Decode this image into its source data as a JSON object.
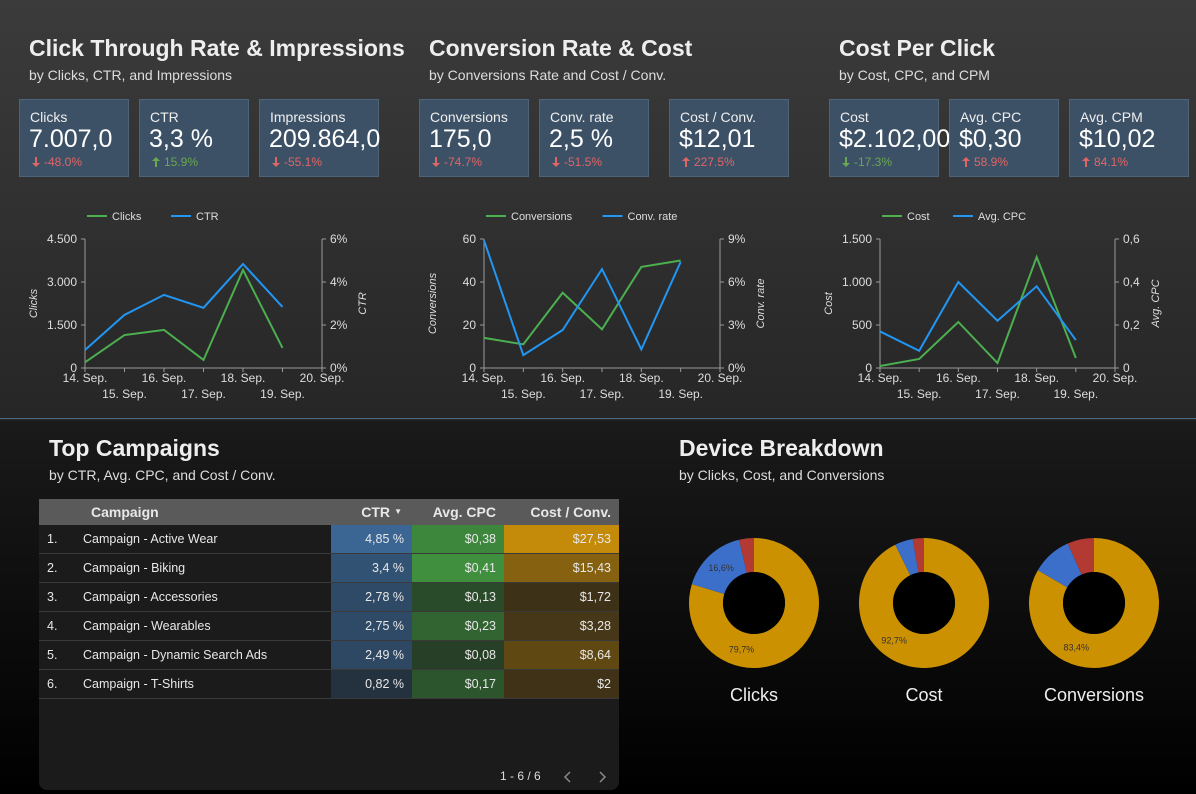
{
  "panels": [
    {
      "title": "Click Through Rate & Impressions",
      "subtitle": "by Clicks, CTR, and Impressions",
      "scorecards": [
        {
          "label": "Clicks",
          "value": "7.007,0",
          "delta": "-48.0%",
          "direction": "down",
          "delta_color": "#e06666"
        },
        {
          "label": "CTR",
          "value": "3,3 %",
          "delta": "15.9%",
          "direction": "up",
          "delta_color": "#6aa84f"
        },
        {
          "label": "Impressions",
          "value": "209.864,0",
          "delta": "-55.1%",
          "direction": "down",
          "delta_color": "#e06666"
        }
      ]
    },
    {
      "title": "Conversion Rate & Cost",
      "subtitle": "by Conversions Rate and Cost / Conv.",
      "scorecards": [
        {
          "label": "Conversions",
          "value": "175,0",
          "delta": "-74.7%",
          "direction": "down",
          "delta_color": "#e06666"
        },
        {
          "label": "Conv. rate",
          "value": "2,5 %",
          "delta": "-51.5%",
          "direction": "down",
          "delta_color": "#e06666"
        },
        {
          "label": "Cost / Conv.",
          "value": "$12,01",
          "delta": "227.5%",
          "direction": "up",
          "delta_color": "#e06666"
        }
      ]
    },
    {
      "title": "Cost Per Click",
      "subtitle": "by Cost, CPC, and CPM",
      "scorecards": [
        {
          "label": "Cost",
          "value": "$2.102,00",
          "delta": "-17.3%",
          "direction": "down",
          "delta_color": "#6aa84f"
        },
        {
          "label": "Avg. CPC",
          "value": "$0,30",
          "delta": "58.9%",
          "direction": "up",
          "delta_color": "#e06666"
        },
        {
          "label": "Avg. CPM",
          "value": "$10,02",
          "delta": "84.1%",
          "direction": "up",
          "delta_color": "#e06666"
        }
      ]
    },
    {
      "title": "Top Campaigns",
      "subtitle": "by CTR, Avg. CPC, and Cost / Conv."
    },
    {
      "title": "Device Breakdown",
      "subtitle": "by Clicks, Cost, and Conversions"
    }
  ],
  "chart_data": [
    {
      "type": "line",
      "categories": [
        "14. Sep.",
        "15. Sep.",
        "16. Sep.",
        "17. Sep.",
        "18. Sep.",
        "19. Sep.",
        "20. Sep."
      ],
      "ylabel": "Clicks",
      "y2label": "CTR",
      "series": [
        {
          "name": "Clicks",
          "color": "#4caf50",
          "values": [
            200,
            1150,
            1330,
            280,
            3420,
            700,
            null
          ]
        },
        {
          "name": "CTR",
          "color": "#2196f3",
          "axis": "y2",
          "values": [
            0.84,
            2.47,
            3.4,
            2.8,
            4.84,
            2.84,
            null
          ]
        }
      ],
      "ylim": [
        0,
        4500
      ],
      "yticks": [
        0,
        {
          "value": 1500,
          "label": "1.500"
        },
        {
          "value": 3000,
          "label": "3.000"
        },
        {
          "value": 4500,
          "label": "4.500"
        }
      ],
      "y2lim": [
        0,
        6
      ],
      "y2ticks": [
        {
          "value": 0,
          "label": "0%"
        },
        {
          "value": 2,
          "label": "2%"
        },
        {
          "value": 4,
          "label": "4%"
        },
        {
          "value": 6,
          "label": "6%"
        }
      ]
    },
    {
      "type": "line",
      "categories": [
        "14. Sep.",
        "15. Sep.",
        "16. Sep.",
        "17. Sep.",
        "18. Sep.",
        "19. Sep.",
        "20. Sep."
      ],
      "ylabel": "Conversions",
      "y2label": "Conv. rate",
      "series": [
        {
          "name": "Conversions",
          "color": "#4caf50",
          "values": [
            14,
            11,
            35,
            18,
            47,
            50,
            null
          ]
        },
        {
          "name": "Conv. rate",
          "color": "#2196f3",
          "axis": "y2",
          "values": [
            8.9,
            0.9,
            2.65,
            6.9,
            1.3,
            7.4,
            null
          ]
        }
      ],
      "ylim": [
        0,
        60
      ],
      "yticks": [
        0,
        20,
        40,
        60
      ],
      "y2lim": [
        0,
        9
      ],
      "y2ticks": [
        {
          "value": 0,
          "label": "0%"
        },
        {
          "value": 3,
          "label": "3%"
        },
        {
          "value": 6,
          "label": "6%"
        },
        {
          "value": 9,
          "label": "9%"
        }
      ]
    },
    {
      "type": "line",
      "categories": [
        "14. Sep.",
        "15. Sep.",
        "16. Sep.",
        "17. Sep.",
        "18. Sep.",
        "19. Sep.",
        "20. Sep."
      ],
      "ylabel": "Cost",
      "y2label": "Avg. CPC",
      "series": [
        {
          "name": "Cost",
          "color": "#4caf50",
          "values": [
            23,
            105,
            535,
            58,
            1290,
            116,
            null
          ]
        },
        {
          "name": "Avg. CPC",
          "color": "#2196f3",
          "axis": "y2",
          "values": [
            0.17,
            0.08,
            0.4,
            0.22,
            0.38,
            0.13,
            null
          ]
        }
      ],
      "ylim": [
        0,
        1500
      ],
      "yticks": [
        0,
        500,
        {
          "value": 1000,
          "label": "1.000"
        },
        {
          "value": 1500,
          "label": "1.500"
        }
      ],
      "y2lim": [
        0,
        0.6
      ],
      "y2ticks": [
        0,
        {
          "value": 0.2,
          "label": "0,2"
        },
        {
          "value": 0.4,
          "label": "0,4"
        },
        {
          "value": 0.6,
          "label": "0,6"
        }
      ]
    },
    {
      "type": "pie",
      "donut": true,
      "title": "Clicks",
      "values": [
        79.7,
        16.6,
        3.7
      ],
      "value_labels": [
        "79,7%",
        "16,6%",
        null
      ],
      "colors": [
        "#cc9100",
        "#3c6fc9",
        "#b23a32"
      ]
    },
    {
      "type": "pie",
      "donut": true,
      "title": "Cost",
      "values": [
        92.7,
        4.5,
        2.8
      ],
      "value_labels": [
        "92,7%",
        null,
        null
      ],
      "colors": [
        "#cc9100",
        "#3c6fc9",
        "#b23a32"
      ]
    },
    {
      "type": "pie",
      "donut": true,
      "title": "Conversions",
      "values": [
        83.4,
        10,
        6.6
      ],
      "value_labels": [
        "83,4%",
        null,
        null
      ],
      "colors": [
        "#cc9100",
        "#3c6fc9",
        "#b23a32"
      ]
    }
  ],
  "table": {
    "columns": [
      "Campaign",
      "CTR",
      "Avg. CPC",
      "Cost / Conv."
    ],
    "sort_column": 1,
    "heat_colors": [
      null,
      "#3b6694",
      "#3f8f3f",
      "#c48a0a"
    ],
    "rows": [
      [
        "1.",
        "Campaign - Active Wear",
        "4,85 %",
        "$0,38",
        "$27,53"
      ],
      [
        "2.",
        "Campaign - Biking",
        "3,4 %",
        "$0,41",
        "$15,43"
      ],
      [
        "3.",
        "Campaign - Accessories",
        "2,78 %",
        "$0,13",
        "$1,72"
      ],
      [
        "4.",
        "Campaign - Wearables",
        "2,75 %",
        "$0,23",
        "$3,28"
      ],
      [
        "5.",
        "Campaign - Dynamic Search Ads",
        "2,49 %",
        "$0,08",
        "$8,64"
      ],
      [
        "6.",
        "Campaign - T-Shirts",
        "0,82 %",
        "$0,17",
        "$2"
      ]
    ],
    "pagination": "1 - 6 / 6"
  }
}
